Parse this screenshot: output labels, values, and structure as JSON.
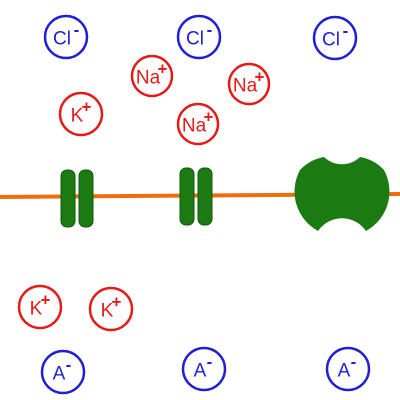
{
  "colors": {
    "cation": "#e41b17",
    "anion": "#1f1fd6",
    "membrane": "#f26b0f",
    "channel": "#1b7a12",
    "channel_dark": "#0f5a0a",
    "background": "#ffffff"
  },
  "ions": [
    {
      "id": "cl-1",
      "symbol": "Cl",
      "charge": "-",
      "kind": "anion"
    },
    {
      "id": "cl-2",
      "symbol": "Cl",
      "charge": "-",
      "kind": "anion"
    },
    {
      "id": "cl-3",
      "symbol": "Cl",
      "charge": "-",
      "kind": "anion"
    },
    {
      "id": "na-1",
      "symbol": "Na",
      "charge": "+",
      "kind": "cation"
    },
    {
      "id": "na-2",
      "symbol": "Na",
      "charge": "+",
      "kind": "cation"
    },
    {
      "id": "na-3",
      "symbol": "Na",
      "charge": "+",
      "kind": "cation"
    },
    {
      "id": "k-1",
      "symbol": "K",
      "charge": "+",
      "kind": "cation"
    },
    {
      "id": "k-2",
      "symbol": "K",
      "charge": "+",
      "kind": "cation"
    },
    {
      "id": "k-3",
      "symbol": "K",
      "charge": "+",
      "kind": "cation"
    },
    {
      "id": "a-1",
      "symbol": "A",
      "charge": "-",
      "kind": "anion"
    },
    {
      "id": "a-2",
      "symbol": "A",
      "charge": "-",
      "kind": "anion"
    },
    {
      "id": "a-3",
      "symbol": "A",
      "charge": "-",
      "kind": "anion"
    }
  ],
  "membrane_proteins": [
    {
      "id": "channel-1",
      "type": "channel"
    },
    {
      "id": "channel-2",
      "type": "channel"
    },
    {
      "id": "pump-1",
      "type": "pump"
    }
  ]
}
